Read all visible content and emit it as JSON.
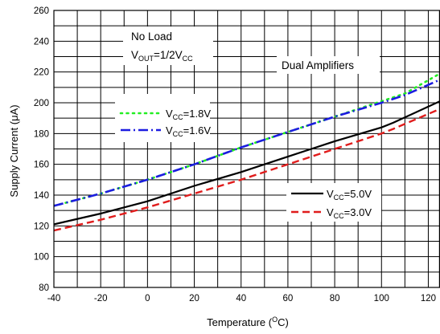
{
  "chart_data": {
    "type": "line",
    "xlabel": {
      "main": "Temperature (",
      "sup": "O",
      "tail": "C)"
    },
    "ylabel": {
      "main": "Supply Current (",
      "mu": "μ",
      "tail": "A)"
    },
    "xlim": [
      -40,
      125
    ],
    "ylim": [
      80,
      260
    ],
    "x_ticks": [
      -40,
      -20,
      0,
      20,
      40,
      60,
      80,
      100,
      120
    ],
    "y_ticks": [
      80,
      100,
      120,
      140,
      160,
      180,
      200,
      220,
      240,
      260
    ],
    "grid": true,
    "annotations": {
      "no_load": "No Load",
      "vout_main": "V",
      "vout_sub": "OUT",
      "vout_mid": "=1/2V",
      "vout_sub2": "CC",
      "dual": "Dual Amplifiers"
    },
    "series": [
      {
        "main": "V",
        "sub": "CC",
        "tail": "=1.8V",
        "color": "#22ee22",
        "dash": "dotted",
        "legend_group": "upper",
        "points": [
          [
            -40,
            133
          ],
          [
            -20,
            141
          ],
          [
            0,
            150
          ],
          [
            20,
            160
          ],
          [
            40,
            171
          ],
          [
            60,
            181
          ],
          [
            80,
            191
          ],
          [
            100,
            201
          ],
          [
            110,
            206
          ],
          [
            125,
            219
          ]
        ]
      },
      {
        "main": "V",
        "sub": "CC",
        "tail": "=1.6V",
        "color": "#1c1ce0",
        "dash": "dashdot",
        "legend_group": "upper",
        "points": [
          [
            -40,
            133
          ],
          [
            -20,
            141
          ],
          [
            0,
            150
          ],
          [
            20,
            160
          ],
          [
            40,
            171
          ],
          [
            60,
            181
          ],
          [
            80,
            191
          ],
          [
            100,
            200
          ],
          [
            110,
            205
          ],
          [
            125,
            215
          ]
        ]
      },
      {
        "main": "V",
        "sub": "CC",
        "tail": "=5.0V",
        "color": "#000000",
        "dash": "solid",
        "legend_group": "lower",
        "points": [
          [
            -40,
            121
          ],
          [
            -20,
            128
          ],
          [
            0,
            136
          ],
          [
            20,
            146
          ],
          [
            40,
            155
          ],
          [
            60,
            165
          ],
          [
            80,
            175
          ],
          [
            100,
            184
          ],
          [
            105,
            187
          ],
          [
            125,
            201
          ]
        ]
      },
      {
        "main": "V",
        "sub": "CC",
        "tail": "=3.0V",
        "color": "#e01c1c",
        "dash": "dashed",
        "legend_group": "lower",
        "points": [
          [
            -40,
            117
          ],
          [
            -20,
            124
          ],
          [
            0,
            132
          ],
          [
            20,
            141
          ],
          [
            40,
            150
          ],
          [
            60,
            160
          ],
          [
            80,
            170
          ],
          [
            100,
            180
          ],
          [
            105,
            183
          ],
          [
            125,
            196
          ]
        ]
      }
    ]
  }
}
